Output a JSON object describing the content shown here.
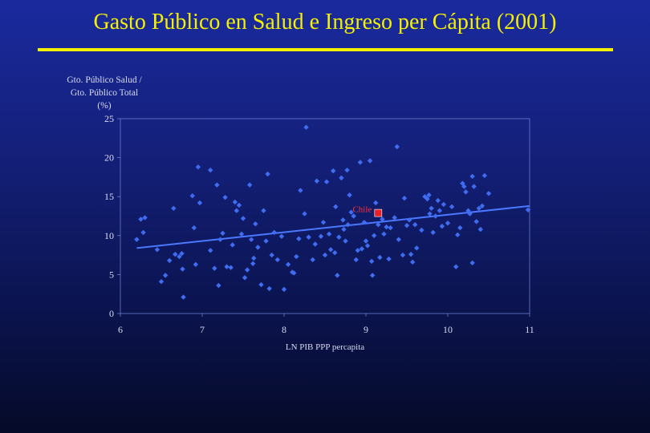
{
  "title": "Gasto Público en Salud e Ingreso per Cápita (2001)",
  "colors": {
    "title": "#f5f000",
    "points": "#3f6cf0",
    "trend": "#4a78ff",
    "highlight": "#e8202a",
    "axis": "#d8dcf0"
  },
  "chart_data": {
    "type": "scatter",
    "title": "",
    "ylabel": [
      "Gto. Público Salud /",
      "Gto. Público Total",
      "(%)"
    ],
    "xlabel": "LN PIB PPP percapita",
    "xlim": [
      6,
      11
    ],
    "ylim": [
      0,
      25
    ],
    "xticks": [
      6,
      7,
      8,
      9,
      10,
      11
    ],
    "yticks": [
      0,
      5,
      10,
      15,
      20,
      25
    ],
    "grid": false,
    "highlight": {
      "label": "Chile",
      "x": 9.15,
      "y": 12.9
    },
    "trendline": {
      "x": [
        6.2,
        11.0
      ],
      "y": [
        8.4,
        13.8
      ]
    },
    "points": [
      [
        6.2,
        9.5
      ],
      [
        6.25,
        12.1
      ],
      [
        6.28,
        10.4
      ],
      [
        6.3,
        12.3
      ],
      [
        6.45,
        8.2
      ],
      [
        6.5,
        4.1
      ],
      [
        6.55,
        4.9
      ],
      [
        6.6,
        6.8
      ],
      [
        6.65,
        13.5
      ],
      [
        6.67,
        7.6
      ],
      [
        6.72,
        7.3
      ],
      [
        6.75,
        7.7
      ],
      [
        6.76,
        5.7
      ],
      [
        6.77,
        2.1
      ],
      [
        6.88,
        15.1
      ],
      [
        6.9,
        11.0
      ],
      [
        6.92,
        6.3
      ],
      [
        6.95,
        18.8
      ],
      [
        6.97,
        14.2
      ],
      [
        7.1,
        18.4
      ],
      [
        7.1,
        8.1
      ],
      [
        7.15,
        5.8
      ],
      [
        7.18,
        16.5
      ],
      [
        7.2,
        3.6
      ],
      [
        7.22,
        9.5
      ],
      [
        7.25,
        10.3
      ],
      [
        7.28,
        14.9
      ],
      [
        7.3,
        6.0
      ],
      [
        7.35,
        5.9
      ],
      [
        7.37,
        8.8
      ],
      [
        7.4,
        14.3
      ],
      [
        7.42,
        13.2
      ],
      [
        7.45,
        13.9
      ],
      [
        7.48,
        10.2
      ],
      [
        7.5,
        12.2
      ],
      [
        7.52,
        4.6
      ],
      [
        7.55,
        5.6
      ],
      [
        7.58,
        16.5
      ],
      [
        7.6,
        9.5
      ],
      [
        7.62,
        6.4
      ],
      [
        7.63,
        7.1
      ],
      [
        7.65,
        11.5
      ],
      [
        7.68,
        8.5
      ],
      [
        7.72,
        3.7
      ],
      [
        7.75,
        13.2
      ],
      [
        7.78,
        9.3
      ],
      [
        7.8,
        17.9
      ],
      [
        7.82,
        3.2
      ],
      [
        7.85,
        7.5
      ],
      [
        7.88,
        10.4
      ],
      [
        7.92,
        6.9
      ],
      [
        7.97,
        9.9
      ],
      [
        8.0,
        3.1
      ],
      [
        8.05,
        6.3
      ],
      [
        8.1,
        5.3
      ],
      [
        8.12,
        5.2
      ],
      [
        8.15,
        7.3
      ],
      [
        8.18,
        9.6
      ],
      [
        8.2,
        15.8
      ],
      [
        8.25,
        12.8
      ],
      [
        8.27,
        23.9
      ],
      [
        8.3,
        9.8
      ],
      [
        8.35,
        6.9
      ],
      [
        8.38,
        8.9
      ],
      [
        8.4,
        17.0
      ],
      [
        8.45,
        9.9
      ],
      [
        8.48,
        11.7
      ],
      [
        8.5,
        7.5
      ],
      [
        8.52,
        16.9
      ],
      [
        8.55,
        10.2
      ],
      [
        8.57,
        8.2
      ],
      [
        8.6,
        18.3
      ],
      [
        8.62,
        7.8
      ],
      [
        8.63,
        13.7
      ],
      [
        8.65,
        4.9
      ],
      [
        8.67,
        9.8
      ],
      [
        8.7,
        17.4
      ],
      [
        8.72,
        12.0
      ],
      [
        8.73,
        10.8
      ],
      [
        8.75,
        9.3
      ],
      [
        8.77,
        18.4
      ],
      [
        8.78,
        11.4
      ],
      [
        8.8,
        15.2
      ],
      [
        8.82,
        13.0
      ],
      [
        8.85,
        12.5
      ],
      [
        8.88,
        6.9
      ],
      [
        8.9,
        8.1
      ],
      [
        8.93,
        19.4
      ],
      [
        8.95,
        8.3
      ],
      [
        8.98,
        11.7
      ],
      [
        9.0,
        9.3
      ],
      [
        9.02,
        8.7
      ],
      [
        9.05,
        19.6
      ],
      [
        9.07,
        6.7
      ],
      [
        9.08,
        4.9
      ],
      [
        9.1,
        10.0
      ],
      [
        9.12,
        14.2
      ],
      [
        9.15,
        11.4
      ],
      [
        9.17,
        7.2
      ],
      [
        9.2,
        12.1
      ],
      [
        9.22,
        10.2
      ],
      [
        9.25,
        11.1
      ],
      [
        9.28,
        7.0
      ],
      [
        9.3,
        11.0
      ],
      [
        9.35,
        12.3
      ],
      [
        9.38,
        21.4
      ],
      [
        9.4,
        9.5
      ],
      [
        9.45,
        7.5
      ],
      [
        9.47,
        14.8
      ],
      [
        9.5,
        11.3
      ],
      [
        9.53,
        12.0
      ],
      [
        9.55,
        7.6
      ],
      [
        9.57,
        6.6
      ],
      [
        9.6,
        11.4
      ],
      [
        9.62,
        8.4
      ],
      [
        9.68,
        10.7
      ],
      [
        9.72,
        15.0
      ],
      [
        9.75,
        14.7
      ],
      [
        9.77,
        15.2
      ],
      [
        9.78,
        12.8
      ],
      [
        9.8,
        13.5
      ],
      [
        9.82,
        10.4
      ],
      [
        9.85,
        12.5
      ],
      [
        9.88,
        14.5
      ],
      [
        9.9,
        13.2
      ],
      [
        9.93,
        11.2
      ],
      [
        9.95,
        14.0
      ],
      [
        10.0,
        11.6
      ],
      [
        10.05,
        13.7
      ],
      [
        10.1,
        6.0
      ],
      [
        10.12,
        10.1
      ],
      [
        10.15,
        11.0
      ],
      [
        10.18,
        16.7
      ],
      [
        10.2,
        16.3
      ],
      [
        10.22,
        15.6
      ],
      [
        10.25,
        13.2
      ],
      [
        10.27,
        12.8
      ],
      [
        10.3,
        17.6
      ],
      [
        10.32,
        16.3
      ],
      [
        10.35,
        11.8
      ],
      [
        10.3,
        6.5
      ],
      [
        10.38,
        13.5
      ],
      [
        10.4,
        10.8
      ],
      [
        10.42,
        13.8
      ],
      [
        10.45,
        17.7
      ],
      [
        10.5,
        15.4
      ],
      [
        10.98,
        13.3
      ]
    ]
  }
}
